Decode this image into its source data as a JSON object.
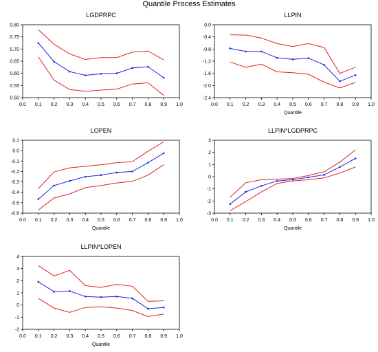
{
  "title": "Quantile Process Estimates",
  "colors": {
    "coef": "#2020e0",
    "bands": "#e02020",
    "axis": "#000000"
  },
  "chart_data": [
    {
      "type": "line",
      "title": "LGDPRPC",
      "xlabel": "",
      "xlim": [
        0.0,
        1.0
      ],
      "ylim": [
        0.5,
        0.8
      ],
      "x_ticks": [
        0.0,
        0.1,
        0.2,
        0.3,
        0.4,
        0.5,
        0.6,
        0.7,
        0.8,
        0.9,
        1.0
      ],
      "y_ticks": [
        0.5,
        0.55,
        0.6,
        0.65,
        0.7,
        0.75,
        0.8
      ],
      "y_tick_labels": [
        "0.50",
        "0.55",
        "0.60",
        "0.65",
        "0.70",
        "0.75",
        "0.80"
      ],
      "x": [
        0.1,
        0.2,
        0.3,
        0.4,
        0.5,
        0.6,
        0.7,
        0.8,
        0.9
      ],
      "series": [
        {
          "role": "upper",
          "values": [
            0.78,
            0.72,
            0.68,
            0.657,
            0.665,
            0.665,
            0.687,
            0.692,
            0.655
          ]
        },
        {
          "role": "estimate",
          "values": [
            0.725,
            0.648,
            0.607,
            0.592,
            0.598,
            0.6,
            0.622,
            0.627,
            0.582
          ]
        },
        {
          "role": "lower",
          "values": [
            0.668,
            0.572,
            0.533,
            0.526,
            0.531,
            0.535,
            0.556,
            0.561,
            0.509
          ]
        }
      ]
    },
    {
      "type": "line",
      "title": "LLPIN",
      "xlabel": "Quantile",
      "xlim": [
        0.0,
        1.0
      ],
      "ylim": [
        -2.4,
        0.0
      ],
      "x_ticks": [
        0.0,
        0.1,
        0.2,
        0.3,
        0.4,
        0.5,
        0.6,
        0.7,
        0.8,
        0.9,
        1.0
      ],
      "y_ticks": [
        0.0,
        -0.4,
        -0.8,
        -1.2,
        -1.6,
        -2.0,
        -2.4
      ],
      "y_tick_labels": [
        "0.0",
        "-0.4",
        "-0.8",
        "-1.2",
        "-1.6",
        "-2.0",
        "-2.4"
      ],
      "x": [
        0.1,
        0.2,
        0.3,
        0.4,
        0.5,
        0.6,
        0.7,
        0.8,
        0.9
      ],
      "series": [
        {
          "role": "upper",
          "values": [
            -0.33,
            -0.34,
            -0.44,
            -0.62,
            -0.72,
            -0.62,
            -0.75,
            -1.6,
            -1.4
          ]
        },
        {
          "role": "estimate",
          "values": [
            -0.78,
            -0.88,
            -0.88,
            -1.09,
            -1.14,
            -1.1,
            -1.32,
            -1.86,
            -1.66
          ]
        },
        {
          "role": "lower",
          "values": [
            -1.23,
            -1.4,
            -1.3,
            -1.55,
            -1.58,
            -1.63,
            -1.89,
            -2.08,
            -1.9
          ]
        }
      ]
    },
    {
      "type": "line",
      "title": "LOPEN",
      "xlabel": "Quantile",
      "xlim": [
        0.0,
        1.0
      ],
      "ylim": [
        -0.6,
        0.1
      ],
      "x_ticks": [
        0.0,
        0.1,
        0.2,
        0.3,
        0.4,
        0.5,
        0.6,
        0.7,
        0.8,
        0.9,
        1.0
      ],
      "y_ticks": [
        0.1,
        0.0,
        -0.1,
        -0.2,
        -0.3,
        -0.4,
        -0.5,
        -0.6
      ],
      "y_tick_labels": [
        "0.1",
        "0.0",
        "-0.1",
        "-0.2",
        "-0.3",
        "-0.4",
        "-0.5",
        "-0.6"
      ],
      "x": [
        0.1,
        0.2,
        0.3,
        0.4,
        0.5,
        0.6,
        0.7,
        0.8,
        0.9
      ],
      "series": [
        {
          "role": "upper",
          "values": [
            -0.365,
            -0.205,
            -0.165,
            -0.15,
            -0.135,
            -0.115,
            -0.105,
            -0.005,
            0.085
          ]
        },
        {
          "role": "estimate",
          "values": [
            -0.465,
            -0.335,
            -0.29,
            -0.25,
            -0.235,
            -0.21,
            -0.2,
            -0.115,
            -0.025
          ]
        },
        {
          "role": "lower",
          "values": [
            -0.57,
            -0.455,
            -0.415,
            -0.355,
            -0.335,
            -0.31,
            -0.295,
            -0.235,
            -0.135
          ]
        }
      ]
    },
    {
      "type": "line",
      "title": "LLPIN*LGDPRPC",
      "xlabel": "Quantile",
      "xlim": [
        0.0,
        1.0
      ],
      "ylim": [
        -3,
        3
      ],
      "x_ticks": [
        0.0,
        0.1,
        0.2,
        0.3,
        0.4,
        0.5,
        0.6,
        0.7,
        0.8,
        0.9,
        1.0
      ],
      "y_ticks": [
        3,
        2,
        1,
        0,
        -1,
        -2,
        -3
      ],
      "y_tick_labels": [
        "3",
        "2",
        "1",
        "0",
        "-1",
        "-2",
        "-3"
      ],
      "x": [
        0.1,
        0.2,
        0.3,
        0.4,
        0.5,
        0.6,
        0.7,
        0.8,
        0.9
      ],
      "series": [
        {
          "role": "upper",
          "values": [
            -1.7,
            -0.5,
            -0.25,
            -0.2,
            -0.15,
            0.1,
            0.4,
            1.2,
            2.2
          ]
        },
        {
          "role": "estimate",
          "values": [
            -2.25,
            -1.25,
            -0.75,
            -0.35,
            -0.25,
            -0.05,
            0.15,
            0.8,
            1.5
          ]
        },
        {
          "role": "lower",
          "values": [
            -2.8,
            -2.05,
            -1.25,
            -0.55,
            -0.35,
            -0.25,
            -0.1,
            0.3,
            0.8
          ]
        }
      ]
    },
    {
      "type": "line",
      "title": "LLPIN*LOPEN",
      "xlabel": "Quantile",
      "xlim": [
        0.0,
        1.0
      ],
      "ylim": [
        -2,
        4
      ],
      "x_ticks": [
        0.0,
        0.1,
        0.2,
        0.3,
        0.4,
        0.5,
        0.6,
        0.7,
        0.8,
        0.9,
        1.0
      ],
      "y_ticks": [
        4,
        3,
        2,
        1,
        0,
        -1,
        -2
      ],
      "y_tick_labels": [
        "4",
        "3",
        "2",
        "1",
        "0",
        "-1",
        "-2"
      ],
      "x": [
        0.1,
        0.2,
        0.3,
        0.4,
        0.5,
        0.6,
        0.7,
        0.8,
        0.9
      ],
      "series": [
        {
          "role": "upper",
          "values": [
            3.25,
            2.4,
            2.85,
            1.6,
            1.45,
            1.7,
            1.55,
            0.3,
            0.35
          ]
        },
        {
          "role": "estimate",
          "values": [
            1.9,
            1.1,
            1.15,
            0.7,
            0.65,
            0.7,
            0.55,
            -0.3,
            -0.2
          ]
        },
        {
          "role": "lower",
          "values": [
            0.55,
            -0.25,
            -0.6,
            -0.2,
            -0.15,
            -0.25,
            -0.45,
            -0.95,
            -0.75
          ]
        }
      ]
    }
  ]
}
